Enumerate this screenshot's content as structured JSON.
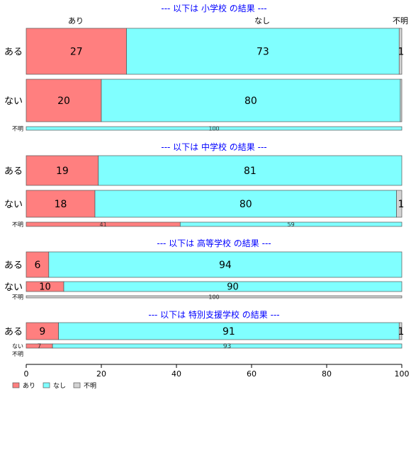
{
  "chart_data": {
    "type": "bar",
    "orientation": "horizontal",
    "stacked": "percent",
    "series_names": [
      "あり",
      "なし",
      "不明"
    ],
    "colors": [
      "#ff7f7f",
      "#80ffff",
      "#d3d3d3"
    ],
    "top_labels": [
      "あり",
      "なし",
      "不明"
    ],
    "xlim": [
      0,
      100
    ],
    "xticks": [
      "0",
      "20",
      "40",
      "60",
      "80",
      "100"
    ],
    "legend": [
      {
        "label": "あり",
        "color": "#ff7f7f"
      },
      {
        "label": "なし",
        "color": "#80ffff"
      },
      {
        "label": "不明",
        "color": "#d3d3d3"
      }
    ],
    "legend_position": "bottom-left",
    "grid": false,
    "panels": [
      {
        "title": "--- 以下は 小学校 の結果 ---",
        "rows": [
          {
            "label": "ある",
            "values": [
              26.7,
              72.6,
              0.7
            ],
            "labels": [
              "27",
              "73",
              "1"
            ]
          },
          {
            "label": "ない",
            "values": [
              20.0,
              79.6,
              0.4
            ],
            "labels": [
              "20",
              "80",
              ""
            ]
          },
          {
            "label": "不明",
            "values": [
              0,
              100,
              0
            ],
            "labels": [
              "",
              "100",
              ""
            ]
          }
        ]
      },
      {
        "title": "--- 以下は 中学校 の結果 ---",
        "rows": [
          {
            "label": "ある",
            "values": [
              19.2,
              80.8,
              0
            ],
            "labels": [
              "19",
              "81",
              ""
            ]
          },
          {
            "label": "ない",
            "values": [
              18.3,
              80.3,
              1.4
            ],
            "labels": [
              "18",
              "80",
              "1"
            ]
          },
          {
            "label": "不明",
            "values": [
              41,
              59,
              0
            ],
            "labels": [
              "41",
              "59",
              ""
            ]
          }
        ]
      },
      {
        "title": "--- 以下は 高等学校 の結果 ---",
        "rows": [
          {
            "label": "ある",
            "values": [
              6,
              94,
              0
            ],
            "labels": [
              "6",
              "94",
              ""
            ]
          },
          {
            "label": "ない",
            "values": [
              10,
              90,
              0
            ],
            "labels": [
              "10",
              "90",
              ""
            ]
          },
          {
            "label": "不明",
            "values": [
              0,
              0,
              100
            ],
            "labels": [
              "",
              "",
              "100"
            ]
          }
        ]
      },
      {
        "title": "--- 以下は 特別支援学校 の結果 ---",
        "rows": [
          {
            "label": "ある",
            "values": [
              8.6,
              90.7,
              0.7
            ],
            "labels": [
              "9",
              "91",
              "1"
            ]
          },
          {
            "label": "ない",
            "values": [
              7,
              93,
              0
            ],
            "labels": [
              "7",
              "93",
              ""
            ]
          },
          {
            "label": "不明",
            "values": [],
            "labels": []
          }
        ]
      }
    ]
  }
}
